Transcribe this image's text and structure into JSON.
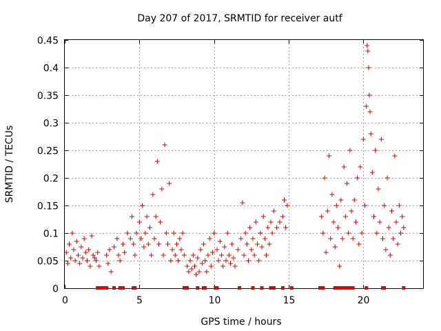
{
  "chart_data": {
    "type": "scatter",
    "title": "Day 207 of 2017, SRMTID for receiver autf",
    "xlabel": "GPS time / hours",
    "ylabel": "SRMTID / TECUs",
    "xlim": [
      0,
      24
    ],
    "ylim": [
      0,
      0.45
    ],
    "grid": true,
    "marker": "+",
    "marker_color": "#dd0000",
    "xticks": [
      0,
      5,
      10,
      15,
      20
    ],
    "xtick_labels": [
      "0",
      "5",
      "10",
      "15",
      "20"
    ],
    "yticks": [
      0,
      0.05,
      0.1,
      0.15,
      0.2,
      0.25,
      0.3,
      0.35,
      0.4,
      0.45
    ],
    "ytick_labels": [
      "0",
      "0.05",
      "0.1",
      "0.15",
      "0.2",
      "0.25",
      "0.3",
      "0.35",
      "0.4",
      "0.45"
    ],
    "series": [
      {
        "name": "SRMTID",
        "points": [
          [
            0.1,
            0.065
          ],
          [
            0.2,
            0.045
          ],
          [
            0.3,
            0.08
          ],
          [
            0.4,
            0.055
          ],
          [
            0.5,
            0.1
          ],
          [
            0.6,
            0.07
          ],
          [
            0.7,
            0.05
          ],
          [
            0.8,
            0.085
          ],
          [
            0.9,
            0.06
          ],
          [
            1.0,
            0.045
          ],
          [
            1.1,
            0.075
          ],
          [
            1.2,
            0.055
          ],
          [
            1.3,
            0.09
          ],
          [
            1.4,
            0.065
          ],
          [
            1.5,
            0.05
          ],
          [
            1.6,
            0.07
          ],
          [
            1.7,
            0.04
          ],
          [
            1.8,
            0.095
          ],
          [
            1.9,
            0.06
          ],
          [
            2.0,
            0.055
          ],
          [
            2.1,
            0.05
          ],
          [
            2.2,
            0.065
          ],
          [
            2.3,
            0.04
          ],
          [
            2.8,
            0.06
          ],
          [
            2.9,
            0.045
          ],
          [
            3.0,
            0.07
          ],
          [
            3.1,
            0.03
          ],
          [
            3.3,
            0.075
          ],
          [
            3.5,
            0.09
          ],
          [
            3.6,
            0.06
          ],
          [
            3.7,
            0.05
          ],
          [
            3.9,
            0.08
          ],
          [
            4.0,
            0.065
          ],
          [
            4.2,
            0.1
          ],
          [
            4.4,
            0.09
          ],
          [
            4.5,
            0.13
          ],
          [
            4.6,
            0.08
          ],
          [
            4.7,
            0.06
          ],
          [
            4.8,
            0.1
          ],
          [
            5.0,
            0.12
          ],
          [
            5.1,
            0.09
          ],
          [
            5.2,
            0.15
          ],
          [
            5.3,
            0.075
          ],
          [
            5.4,
            0.1
          ],
          [
            5.5,
            0.13
          ],
          [
            5.6,
            0.08
          ],
          [
            5.7,
            0.11
          ],
          [
            5.8,
            0.06
          ],
          [
            5.9,
            0.17
          ],
          [
            6.0,
            0.09
          ],
          [
            6.1,
            0.13
          ],
          [
            6.2,
            0.23
          ],
          [
            6.3,
            0.08
          ],
          [
            6.4,
            0.12
          ],
          [
            6.5,
            0.18
          ],
          [
            6.6,
            0.06
          ],
          [
            6.7,
            0.26
          ],
          [
            6.8,
            0.1
          ],
          [
            6.9,
            0.08
          ],
          [
            7.0,
            0.19
          ],
          [
            7.1,
            0.05
          ],
          [
            7.2,
            0.07
          ],
          [
            7.3,
            0.1
          ],
          [
            7.4,
            0.06
          ],
          [
            7.5,
            0.08
          ],
          [
            7.6,
            0.05
          ],
          [
            7.7,
            0.09
          ],
          [
            7.8,
            0.07
          ],
          [
            7.9,
            0.1
          ],
          [
            8.0,
            0.06
          ],
          [
            8.2,
            0.04
          ],
          [
            8.3,
            0.03
          ],
          [
            8.4,
            0.05
          ],
          [
            8.5,
            0.035
          ],
          [
            8.6,
            0.06
          ],
          [
            8.7,
            0.04
          ],
          [
            8.8,
            0.025
          ],
          [
            8.9,
            0.055
          ],
          [
            9.0,
            0.03
          ],
          [
            9.1,
            0.07
          ],
          [
            9.2,
            0.045
          ],
          [
            9.3,
            0.08
          ],
          [
            9.4,
            0.05
          ],
          [
            9.5,
            0.03
          ],
          [
            9.6,
            0.06
          ],
          [
            9.7,
            0.09
          ],
          [
            9.8,
            0.04
          ],
          [
            9.9,
            0.065
          ],
          [
            10.0,
            0.1
          ],
          [
            10.2,
            0.07
          ],
          [
            10.3,
            0.05
          ],
          [
            10.4,
            0.085
          ],
          [
            10.5,
            0.06
          ],
          [
            10.6,
            0.04
          ],
          [
            10.7,
            0.075
          ],
          [
            10.8,
            0.05
          ],
          [
            10.9,
            0.1
          ],
          [
            11.0,
            0.06
          ],
          [
            11.1,
            0.045
          ],
          [
            11.2,
            0.08
          ],
          [
            11.3,
            0.055
          ],
          [
            11.4,
            0.04
          ],
          [
            11.6,
            0.07
          ],
          [
            11.8,
            0.09
          ],
          [
            11.9,
            0.155
          ],
          [
            12.0,
            0.06
          ],
          [
            12.1,
            0.1
          ],
          [
            12.2,
            0.08
          ],
          [
            12.3,
            0.05
          ],
          [
            12.4,
            0.11
          ],
          [
            12.5,
            0.07
          ],
          [
            12.6,
            0.09
          ],
          [
            12.7,
            0.06
          ],
          [
            12.8,
            0.12
          ],
          [
            12.9,
            0.08
          ],
          [
            13.0,
            0.05
          ],
          [
            13.1,
            0.1
          ],
          [
            13.2,
            0.075
          ],
          [
            13.3,
            0.13
          ],
          [
            13.4,
            0.09
          ],
          [
            13.5,
            0.06
          ],
          [
            13.6,
            0.11
          ],
          [
            13.7,
            0.08
          ],
          [
            13.8,
            0.12
          ],
          [
            13.9,
            0.1
          ],
          [
            14.0,
            0.14
          ],
          [
            14.2,
            0.11
          ],
          [
            14.4,
            0.12
          ],
          [
            14.6,
            0.13
          ],
          [
            14.7,
            0.16
          ],
          [
            14.8,
            0.11
          ],
          [
            14.9,
            0.15
          ],
          [
            17.2,
            0.13
          ],
          [
            17.3,
            0.1
          ],
          [
            17.4,
            0.2
          ],
          [
            17.5,
            0.065
          ],
          [
            17.6,
            0.14
          ],
          [
            17.7,
            0.24
          ],
          [
            17.8,
            0.09
          ],
          [
            17.9,
            0.17
          ],
          [
            18.0,
            0.12
          ],
          [
            18.1,
            0.075
          ],
          [
            18.2,
            0.15
          ],
          [
            18.3,
            0.11
          ],
          [
            18.4,
            0.04
          ],
          [
            18.5,
            0.16
          ],
          [
            18.6,
            0.09
          ],
          [
            18.7,
            0.22
          ],
          [
            18.8,
            0.13
          ],
          [
            18.9,
            0.19
          ],
          [
            19.0,
            0.1
          ],
          [
            19.1,
            0.25
          ],
          [
            19.2,
            0.14
          ],
          [
            19.3,
            0.09
          ],
          [
            19.4,
            0.16
          ],
          [
            19.5,
            0.12
          ],
          [
            19.6,
            0.2
          ],
          [
            19.7,
            0.08
          ],
          [
            19.8,
            0.22
          ],
          [
            19.9,
            0.1
          ],
          [
            20.0,
            0.27
          ],
          [
            20.1,
            0.15
          ],
          [
            20.2,
            0.33
          ],
          [
            20.25,
            0.44
          ],
          [
            20.3,
            0.43
          ],
          [
            20.35,
            0.4
          ],
          [
            20.4,
            0.35
          ],
          [
            20.45,
            0.32
          ],
          [
            20.5,
            0.28
          ],
          [
            20.6,
            0.21
          ],
          [
            20.7,
            0.13
          ],
          [
            20.8,
            0.25
          ],
          [
            20.9,
            0.1
          ],
          [
            21.0,
            0.18
          ],
          [
            21.1,
            0.12
          ],
          [
            21.2,
            0.27
          ],
          [
            21.3,
            0.09
          ],
          [
            21.4,
            0.15
          ],
          [
            21.5,
            0.07
          ],
          [
            21.6,
            0.2
          ],
          [
            21.7,
            0.11
          ],
          [
            21.8,
            0.06
          ],
          [
            21.9,
            0.14
          ],
          [
            22.0,
            0.09
          ],
          [
            22.1,
            0.24
          ],
          [
            22.2,
            0.12
          ],
          [
            22.3,
            0.08
          ],
          [
            22.4,
            0.15
          ],
          [
            22.5,
            0.1
          ],
          [
            22.6,
            0.13
          ],
          [
            22.7,
            0.11
          ]
        ]
      }
    ],
    "zero_points_x": [
      2.2,
      2.3,
      2.4,
      2.5,
      2.6,
      2.7,
      2.8,
      3.3,
      3.7,
      3.9,
      4.6,
      4.7,
      8.0,
      8.2,
      8.9,
      9.3,
      9.4,
      10.1,
      10.2,
      11.7,
      12.6,
      13.2,
      13.8,
      14.0,
      14.6,
      15.2,
      17.1,
      17.2,
      17.3,
      18.1,
      18.2,
      18.3,
      18.5,
      18.7,
      18.9,
      19.0,
      19.1,
      19.3,
      20.2,
      21.3,
      21.4,
      22.7
    ]
  }
}
